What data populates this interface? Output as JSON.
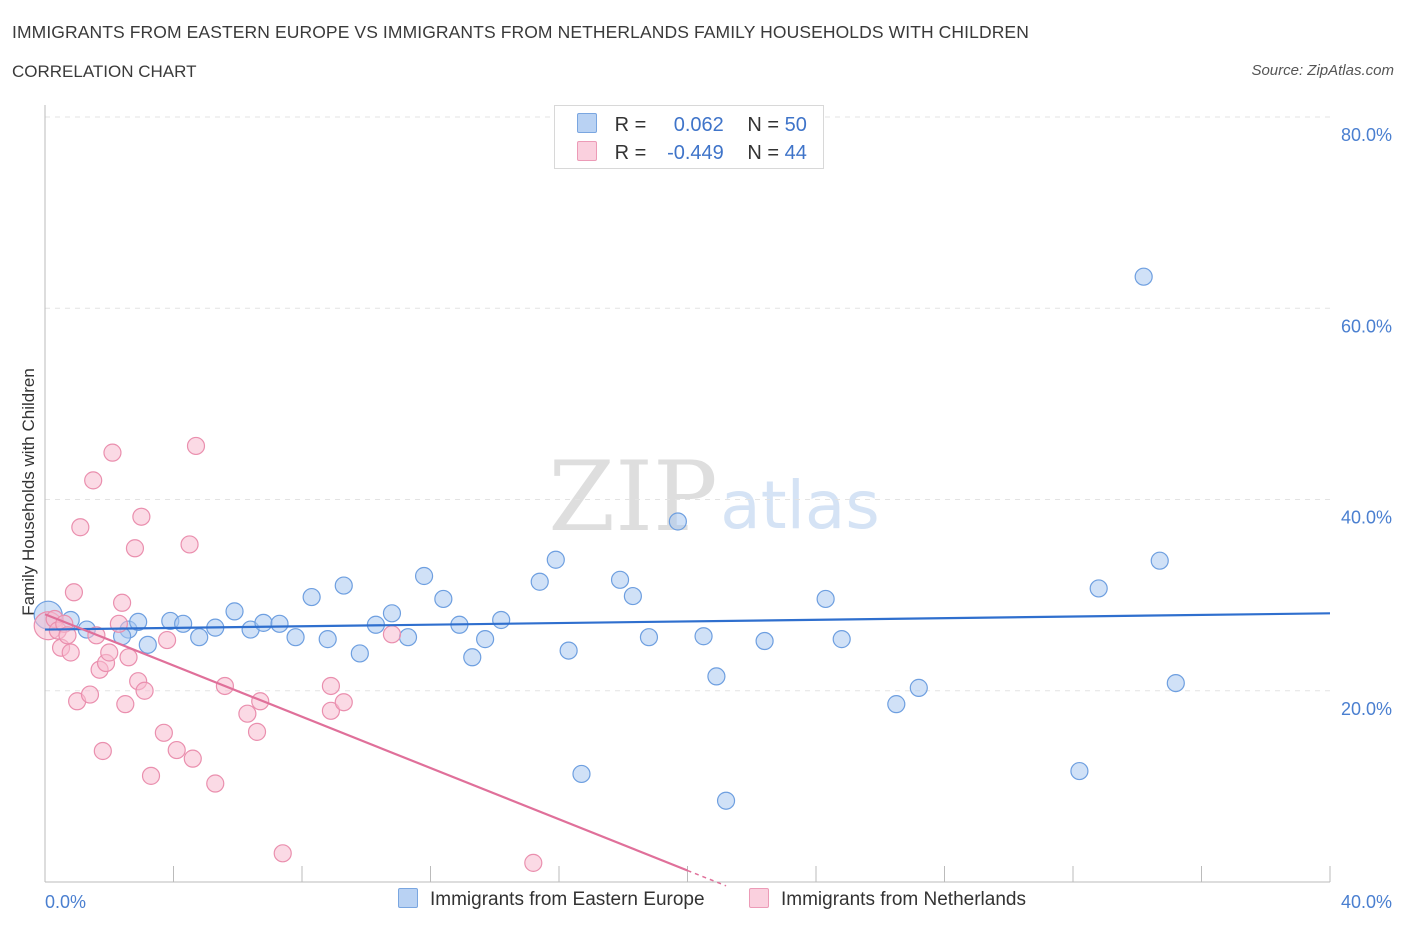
{
  "header": {
    "title": "IMMIGRANTS FROM EASTERN EUROPE VS IMMIGRANTS FROM NETHERLANDS FAMILY HOUSEHOLDS WITH CHILDREN",
    "subtitle": "CORRELATION CHART",
    "source": "Source: ZipAtlas.com"
  },
  "watermark": {
    "zip": "ZIP",
    "atlas": "atlas"
  },
  "colors": {
    "blue_fill": "#a9c8f0",
    "blue_stroke": "#6e9fe0",
    "blue_line": "#2f6fce",
    "pink_fill": "#f7bcd0",
    "pink_stroke": "#ea8fae",
    "pink_line": "#e0709a",
    "grid": "#e3e3e3",
    "tick_text": "#4a7fd0"
  },
  "legend": {
    "rows": [
      {
        "r_label": "R =",
        "r_value": "0.062",
        "n_label": "N =",
        "n_value": "50"
      },
      {
        "r_label": "R =",
        "r_value": "-0.449",
        "n_label": "N =",
        "n_value": "44"
      }
    ]
  },
  "bottom_legend": {
    "series1": "Immigrants from Eastern Europe",
    "series2": "Immigrants from Netherlands"
  },
  "chart_data": {
    "type": "scatter",
    "title": "IMMIGRANTS FROM EASTERN EUROPE VS IMMIGRANTS FROM NETHERLANDS FAMILY HOUSEHOLDS WITH CHILDREN",
    "subtitle": "CORRELATION CHART",
    "ylabel": "Family Households with Children",
    "xlabel": "",
    "xlim": [
      0,
      40
    ],
    "ylim": [
      0,
      80
    ],
    "x_ticks": [
      0,
      40
    ],
    "x_tick_labels": [
      "0.0%",
      "40.0%"
    ],
    "y_ticks": [
      20,
      40,
      60,
      80
    ],
    "y_tick_labels": [
      "20.0%",
      "40.0%",
      "60.0%",
      "80.0%"
    ],
    "grid": true,
    "legend_position": "top-center",
    "series": [
      {
        "name": "Immigrants from Eastern Europe",
        "color": "#a9c8f0",
        "r": 0.062,
        "n": 50,
        "trend": {
          "x": [
            0,
            40
          ],
          "y": [
            26.4,
            28.1
          ]
        },
        "points": [
          {
            "x": 0.1,
            "y": 27.9,
            "big": true
          },
          {
            "x": 0.8,
            "y": 27.4
          },
          {
            "x": 1.3,
            "y": 26.4
          },
          {
            "x": 2.6,
            "y": 26.4
          },
          {
            "x": 2.4,
            "y": 25.7
          },
          {
            "x": 2.9,
            "y": 27.2
          },
          {
            "x": 3.2,
            "y": 24.8
          },
          {
            "x": 3.9,
            "y": 27.3
          },
          {
            "x": 4.3,
            "y": 27.0
          },
          {
            "x": 4.8,
            "y": 25.6
          },
          {
            "x": 5.3,
            "y": 26.6
          },
          {
            "x": 5.9,
            "y": 28.3
          },
          {
            "x": 6.4,
            "y": 26.4
          },
          {
            "x": 6.8,
            "y": 27.1
          },
          {
            "x": 7.3,
            "y": 27.0
          },
          {
            "x": 7.8,
            "y": 25.6
          },
          {
            "x": 8.3,
            "y": 29.8
          },
          {
            "x": 8.8,
            "y": 25.4
          },
          {
            "x": 9.3,
            "y": 31.0
          },
          {
            "x": 9.8,
            "y": 23.9
          },
          {
            "x": 10.3,
            "y": 26.9
          },
          {
            "x": 10.8,
            "y": 28.1
          },
          {
            "x": 11.3,
            "y": 25.6
          },
          {
            "x": 11.8,
            "y": 32.0
          },
          {
            "x": 12.4,
            "y": 29.6
          },
          {
            "x": 12.9,
            "y": 26.9
          },
          {
            "x": 13.3,
            "y": 23.5
          },
          {
            "x": 13.7,
            "y": 25.4
          },
          {
            "x": 14.2,
            "y": 27.4
          },
          {
            "x": 15.4,
            "y": 31.4
          },
          {
            "x": 15.9,
            "y": 33.7
          },
          {
            "x": 16.3,
            "y": 24.2
          },
          {
            "x": 16.7,
            "y": 11.3
          },
          {
            "x": 17.9,
            "y": 31.6
          },
          {
            "x": 18.3,
            "y": 29.9
          },
          {
            "x": 18.8,
            "y": 25.6
          },
          {
            "x": 19.7,
            "y": 37.7
          },
          {
            "x": 20.5,
            "y": 25.7
          },
          {
            "x": 20.9,
            "y": 21.5
          },
          {
            "x": 21.2,
            "y": 8.5
          },
          {
            "x": 22.4,
            "y": 25.2
          },
          {
            "x": 24.3,
            "y": 29.6
          },
          {
            "x": 24.8,
            "y": 25.4
          },
          {
            "x": 26.5,
            "y": 18.6
          },
          {
            "x": 27.2,
            "y": 20.3
          },
          {
            "x": 32.2,
            "y": 11.6
          },
          {
            "x": 32.8,
            "y": 30.7
          },
          {
            "x": 34.2,
            "y": 63.3
          },
          {
            "x": 34.7,
            "y": 33.6
          },
          {
            "x": 35.2,
            "y": 20.8
          }
        ]
      },
      {
        "name": "Immigrants from Netherlands",
        "color": "#f7bcd0",
        "r": -0.449,
        "n": 44,
        "trend": {
          "x": [
            0,
            20
          ],
          "y": [
            28.0,
            1.2
          ]
        },
        "trend_dashed": {
          "x": [
            20,
            21.2
          ],
          "y": [
            1.2,
            -0.4
          ]
        },
        "points": [
          {
            "x": 0.1,
            "y": 26.8,
            "big": true
          },
          {
            "x": 0.3,
            "y": 27.5
          },
          {
            "x": 0.4,
            "y": 26.3
          },
          {
            "x": 0.5,
            "y": 24.5
          },
          {
            "x": 0.6,
            "y": 27.0
          },
          {
            "x": 0.7,
            "y": 25.8
          },
          {
            "x": 0.8,
            "y": 24.0
          },
          {
            "x": 0.9,
            "y": 30.3
          },
          {
            "x": 1.0,
            "y": 18.9
          },
          {
            "x": 1.1,
            "y": 37.1
          },
          {
            "x": 1.4,
            "y": 19.6
          },
          {
            "x": 1.5,
            "y": 42.0
          },
          {
            "x": 1.6,
            "y": 25.8
          },
          {
            "x": 1.7,
            "y": 22.2
          },
          {
            "x": 1.8,
            "y": 13.7
          },
          {
            "x": 1.9,
            "y": 22.9
          },
          {
            "x": 2.0,
            "y": 24.0
          },
          {
            "x": 2.1,
            "y": 44.9
          },
          {
            "x": 2.3,
            "y": 27.0
          },
          {
            "x": 2.4,
            "y": 29.2
          },
          {
            "x": 2.5,
            "y": 18.6
          },
          {
            "x": 2.6,
            "y": 23.5
          },
          {
            "x": 2.8,
            "y": 34.9
          },
          {
            "x": 2.9,
            "y": 21.0
          },
          {
            "x": 3.0,
            "y": 38.2
          },
          {
            "x": 3.1,
            "y": 20.0
          },
          {
            "x": 3.3,
            "y": 11.1
          },
          {
            "x": 3.7,
            "y": 15.6
          },
          {
            "x": 3.8,
            "y": 25.3
          },
          {
            "x": 4.1,
            "y": 13.8
          },
          {
            "x": 4.5,
            "y": 35.3
          },
          {
            "x": 4.6,
            "y": 12.9
          },
          {
            "x": 4.7,
            "y": 45.6
          },
          {
            "x": 5.3,
            "y": 10.3
          },
          {
            "x": 5.6,
            "y": 20.5
          },
          {
            "x": 6.3,
            "y": 17.6
          },
          {
            "x": 6.6,
            "y": 15.7
          },
          {
            "x": 6.7,
            "y": 18.9
          },
          {
            "x": 7.4,
            "y": 3.0
          },
          {
            "x": 8.9,
            "y": 17.9
          },
          {
            "x": 8.9,
            "y": 20.5
          },
          {
            "x": 9.3,
            "y": 18.8
          },
          {
            "x": 10.8,
            "y": 25.9
          },
          {
            "x": 15.2,
            "y": 2.0
          }
        ]
      }
    ]
  }
}
